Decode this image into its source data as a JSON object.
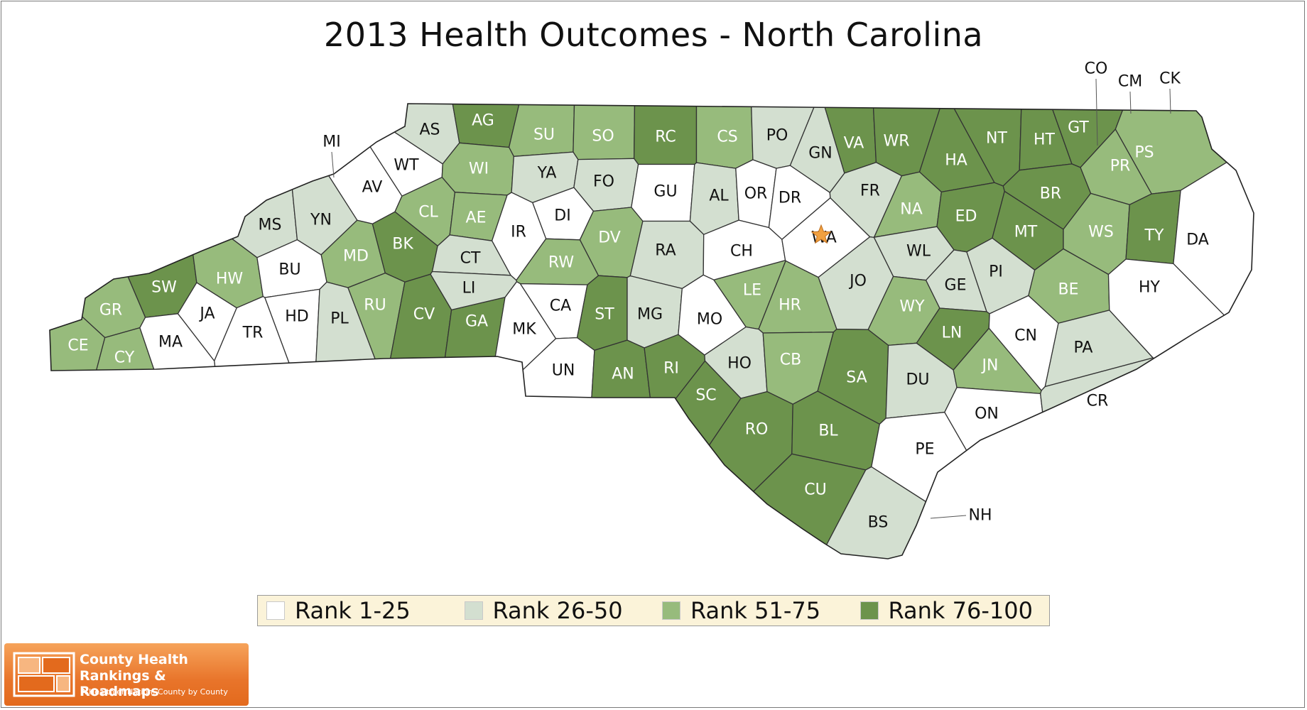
{
  "title": "2013 Health Outcomes - North Carolina",
  "colors": {
    "rank_1_25": "#ffffff",
    "rank_26_50": "#d3dfd0",
    "rank_51_75": "#97bb7c",
    "rank_76_100": "#6c934c",
    "border": "#333333",
    "label_light": "#111111",
    "label_dark": "#ffffff",
    "legend_bg": "#fbf3d9",
    "capital_star": "#f0a040"
  },
  "legend": [
    {
      "label": "Rank 1-25",
      "color": "#ffffff"
    },
    {
      "label": "Rank 26-50",
      "color": "#d3dfd0"
    },
    {
      "label": "Rank 51-75",
      "color": "#97bb7c"
    },
    {
      "label": "Rank 76-100",
      "color": "#6c934c"
    }
  ],
  "counties": [
    {
      "code": "AS",
      "tier": 2
    },
    {
      "code": "AG",
      "tier": 4
    },
    {
      "code": "SU",
      "tier": 3
    },
    {
      "code": "SO",
      "tier": 3
    },
    {
      "code": "RC",
      "tier": 4
    },
    {
      "code": "CS",
      "tier": 3
    },
    {
      "code": "PO",
      "tier": 2
    },
    {
      "code": "GN",
      "tier": 2
    },
    {
      "code": "VA",
      "tier": 4
    },
    {
      "code": "WR",
      "tier": 4
    },
    {
      "code": "NT",
      "tier": 4
    },
    {
      "code": "HA",
      "tier": 4
    },
    {
      "code": "HT",
      "tier": 4
    },
    {
      "code": "GT",
      "tier": 4
    },
    {
      "code": "CO",
      "tier": 2
    },
    {
      "code": "CM",
      "tier": 2
    },
    {
      "code": "CK",
      "tier": 2
    },
    {
      "code": "PS",
      "tier": 3
    },
    {
      "code": "PR",
      "tier": 3
    },
    {
      "code": "WT",
      "tier": 1
    },
    {
      "code": "WI",
      "tier": 3
    },
    {
      "code": "YA",
      "tier": 2
    },
    {
      "code": "FO",
      "tier": 2
    },
    {
      "code": "GU",
      "tier": 1
    },
    {
      "code": "AL",
      "tier": 2
    },
    {
      "code": "OR",
      "tier": 1
    },
    {
      "code": "DR",
      "tier": 1
    },
    {
      "code": "FR",
      "tier": 2
    },
    {
      "code": "BR",
      "tier": 4
    },
    {
      "code": "MI",
      "tier": 3
    },
    {
      "code": "AV",
      "tier": 1
    },
    {
      "code": "CL",
      "tier": 3
    },
    {
      "code": "AE",
      "tier": 3
    },
    {
      "code": "IR",
      "tier": 1
    },
    {
      "code": "DI",
      "tier": 1
    },
    {
      "code": "DV",
      "tier": 3
    },
    {
      "code": "RA",
      "tier": 2
    },
    {
      "code": "CH",
      "tier": 1
    },
    {
      "code": "WA",
      "tier": 1
    },
    {
      "code": "NA",
      "tier": 3
    },
    {
      "code": "ED",
      "tier": 4
    },
    {
      "code": "MT",
      "tier": 4
    },
    {
      "code": "WS",
      "tier": 3
    },
    {
      "code": "TY",
      "tier": 4
    },
    {
      "code": "DA",
      "tier": 1
    },
    {
      "code": "MS",
      "tier": 2
    },
    {
      "code": "YN",
      "tier": 2
    },
    {
      "code": "MD",
      "tier": 3
    },
    {
      "code": "BK",
      "tier": 4
    },
    {
      "code": "CT",
      "tier": 2
    },
    {
      "code": "RW",
      "tier": 3
    },
    {
      "code": "WL",
      "tier": 2
    },
    {
      "code": "JO",
      "tier": 2
    },
    {
      "code": "PI",
      "tier": 2
    },
    {
      "code": "BE",
      "tier": 3
    },
    {
      "code": "HY",
      "tier": 1
    },
    {
      "code": "SW",
      "tier": 4
    },
    {
      "code": "HW",
      "tier": 3
    },
    {
      "code": "BU",
      "tier": 1
    },
    {
      "code": "LI",
      "tier": 2
    },
    {
      "code": "GR",
      "tier": 3
    },
    {
      "code": "JA",
      "tier": 1
    },
    {
      "code": "HD",
      "tier": 1
    },
    {
      "code": "TR",
      "tier": 1
    },
    {
      "code": "PL",
      "tier": 2
    },
    {
      "code": "RU",
      "tier": 3
    },
    {
      "code": "CV",
      "tier": 4
    },
    {
      "code": "GA",
      "tier": 4
    },
    {
      "code": "MK",
      "tier": 1
    },
    {
      "code": "CA",
      "tier": 1
    },
    {
      "code": "ST",
      "tier": 4
    },
    {
      "code": "MG",
      "tier": 2
    },
    {
      "code": "MO",
      "tier": 1
    },
    {
      "code": "LE",
      "tier": 3
    },
    {
      "code": "HR",
      "tier": 3
    },
    {
      "code": "WY",
      "tier": 3
    },
    {
      "code": "GE",
      "tier": 2
    },
    {
      "code": "LN",
      "tier": 4
    },
    {
      "code": "CN",
      "tier": 1
    },
    {
      "code": "PA",
      "tier": 2
    },
    {
      "code": "CE",
      "tier": 3
    },
    {
      "code": "CY",
      "tier": 3
    },
    {
      "code": "MA",
      "tier": 1
    },
    {
      "code": "UN",
      "tier": 1
    },
    {
      "code": "AN",
      "tier": 4
    },
    {
      "code": "RI",
      "tier": 4
    },
    {
      "code": "HO",
      "tier": 2
    },
    {
      "code": "CB",
      "tier": 3
    },
    {
      "code": "SA",
      "tier": 4
    },
    {
      "code": "DU",
      "tier": 2
    },
    {
      "code": "JN",
      "tier": 3
    },
    {
      "code": "SC",
      "tier": 4
    },
    {
      "code": "RO",
      "tier": 4
    },
    {
      "code": "BL",
      "tier": 4
    },
    {
      "code": "ON",
      "tier": 1
    },
    {
      "code": "CR",
      "tier": 2
    },
    {
      "code": "PE",
      "tier": 1
    },
    {
      "code": "CU",
      "tier": 4
    },
    {
      "code": "BS",
      "tier": 2
    },
    {
      "code": "NH",
      "tier": 1
    }
  ],
  "capital_county": "WA",
  "logo": {
    "line1": "County Health",
    "line2": "Rankings & Roadmaps",
    "tagline": "A Healthier Nation, County by County"
  }
}
